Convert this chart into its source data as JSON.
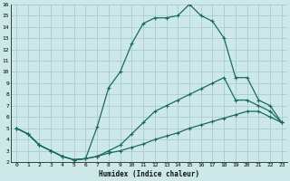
{
  "xlabel": "Humidex (Indice chaleur)",
  "bg_color": "#cce8e8",
  "grid_color": "#aacccc",
  "line_color": "#1a6b5a",
  "xlim": [
    -0.5,
    23.5
  ],
  "ylim": [
    2,
    16
  ],
  "xticks": [
    0,
    1,
    2,
    3,
    4,
    5,
    6,
    7,
    8,
    9,
    10,
    11,
    12,
    13,
    14,
    15,
    16,
    17,
    18,
    19,
    20,
    21,
    22,
    23
  ],
  "yticks": [
    2,
    3,
    4,
    5,
    6,
    7,
    8,
    9,
    10,
    11,
    12,
    13,
    14,
    15,
    16
  ],
  "curve_top_x": [
    0,
    1,
    2,
    3,
    4,
    5,
    6,
    7,
    8,
    9,
    10,
    11,
    12,
    13,
    14,
    15,
    16,
    17,
    18,
    19,
    20,
    21,
    22,
    23
  ],
  "curve_top_y": [
    5.0,
    4.5,
    3.5,
    3.0,
    2.5,
    2.2,
    2.3,
    5.1,
    8.6,
    10.0,
    12.5,
    14.3,
    14.8,
    14.8,
    15.0,
    16.0,
    15.0,
    14.5,
    13.0,
    9.5,
    9.5,
    7.5,
    7.0,
    5.5
  ],
  "curve_mid_x": [
    0,
    1,
    2,
    3,
    4,
    5,
    6,
    7,
    8,
    9,
    10,
    11,
    12,
    13,
    14,
    15,
    16,
    17,
    18,
    19,
    20,
    21,
    22,
    23
  ],
  "curve_mid_y": [
    5.0,
    4.5,
    3.5,
    3.0,
    2.5,
    2.2,
    2.3,
    2.5,
    3.0,
    3.5,
    4.5,
    5.5,
    6.5,
    7.0,
    7.5,
    8.0,
    8.5,
    9.0,
    9.5,
    7.5,
    7.5,
    7.0,
    6.5,
    5.5
  ],
  "curve_bot_x": [
    0,
    1,
    2,
    3,
    4,
    5,
    6,
    7,
    8,
    9,
    10,
    11,
    12,
    13,
    14,
    15,
    16,
    17,
    18,
    19,
    20,
    21,
    22,
    23
  ],
  "curve_bot_y": [
    5.0,
    4.5,
    3.5,
    3.0,
    2.5,
    2.2,
    2.3,
    2.5,
    2.8,
    3.0,
    3.3,
    3.6,
    4.0,
    4.3,
    4.6,
    5.0,
    5.3,
    5.6,
    5.9,
    6.2,
    6.5,
    6.5,
    6.0,
    5.5
  ]
}
